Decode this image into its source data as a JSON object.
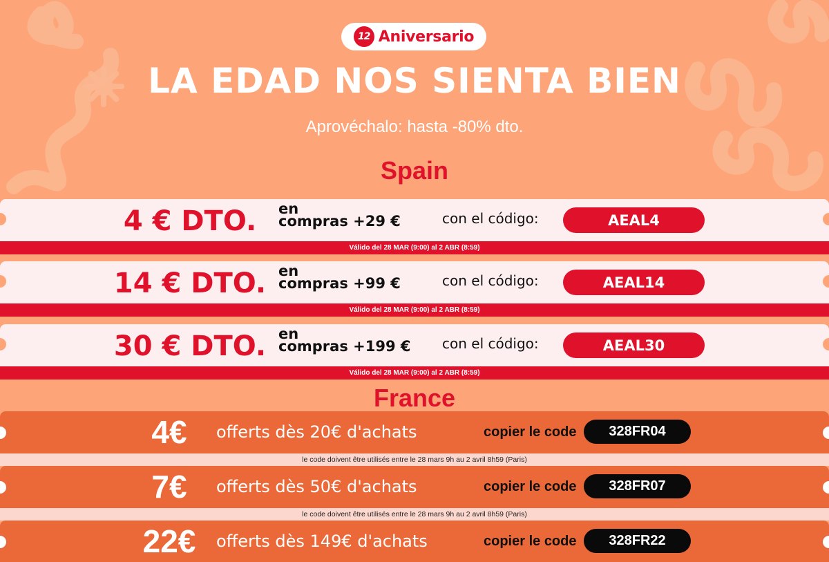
{
  "colors": {
    "background": "#fda579",
    "accent_red": "#e0112b",
    "france_orange": "#eb6838",
    "code_black": "#0a0a0a"
  },
  "header": {
    "badge_logo": "12",
    "badge_text": "Aniversario",
    "headline": "LA EDAD NOS SIENTA BIEN",
    "subhead": "Aprovéchalo: hasta -80% dto."
  },
  "spain": {
    "title": "Spain",
    "code_label": "con el código:",
    "coupons": [
      {
        "amount": "4 € DTO.",
        "cond_top": "en",
        "cond_bottom": "compras +29 €",
        "code": "AEAL4",
        "validity": "Válido del 28 MAR (9:00) al 2 ABR (8:59)"
      },
      {
        "amount": "14 € DTO.",
        "cond_top": "en",
        "cond_bottom": "compras +99 €",
        "code": "AEAL14",
        "validity": "Válido del 28 MAR (9:00) al 2 ABR (8:59)"
      },
      {
        "amount": "30 € DTO.",
        "cond_top": "en",
        "cond_bottom": "compras +199 €",
        "code": "AEAL30",
        "validity": "Válido del 28 MAR (9:00) al 2 ABR (8:59)"
      }
    ]
  },
  "france": {
    "title": "France",
    "code_label": "copier le code",
    "coupons": [
      {
        "amount": "4€",
        "condition": "offerts dès 20€ d'achats",
        "code": "328FR04",
        "validity": "le code doivent être utilisés entre le 28 mars 9h au 2 avril 8h59 (Paris)"
      },
      {
        "amount": "7€",
        "condition": "offerts dès 50€ d'achats",
        "code": "328FR07",
        "validity": "le code doivent être utilisés entre le 28 mars 9h au 2 avril 8h59 (Paris)"
      },
      {
        "amount": "22€",
        "condition": "offerts dès 149€ d'achats",
        "code": "328FR22",
        "validity": ""
      }
    ]
  }
}
